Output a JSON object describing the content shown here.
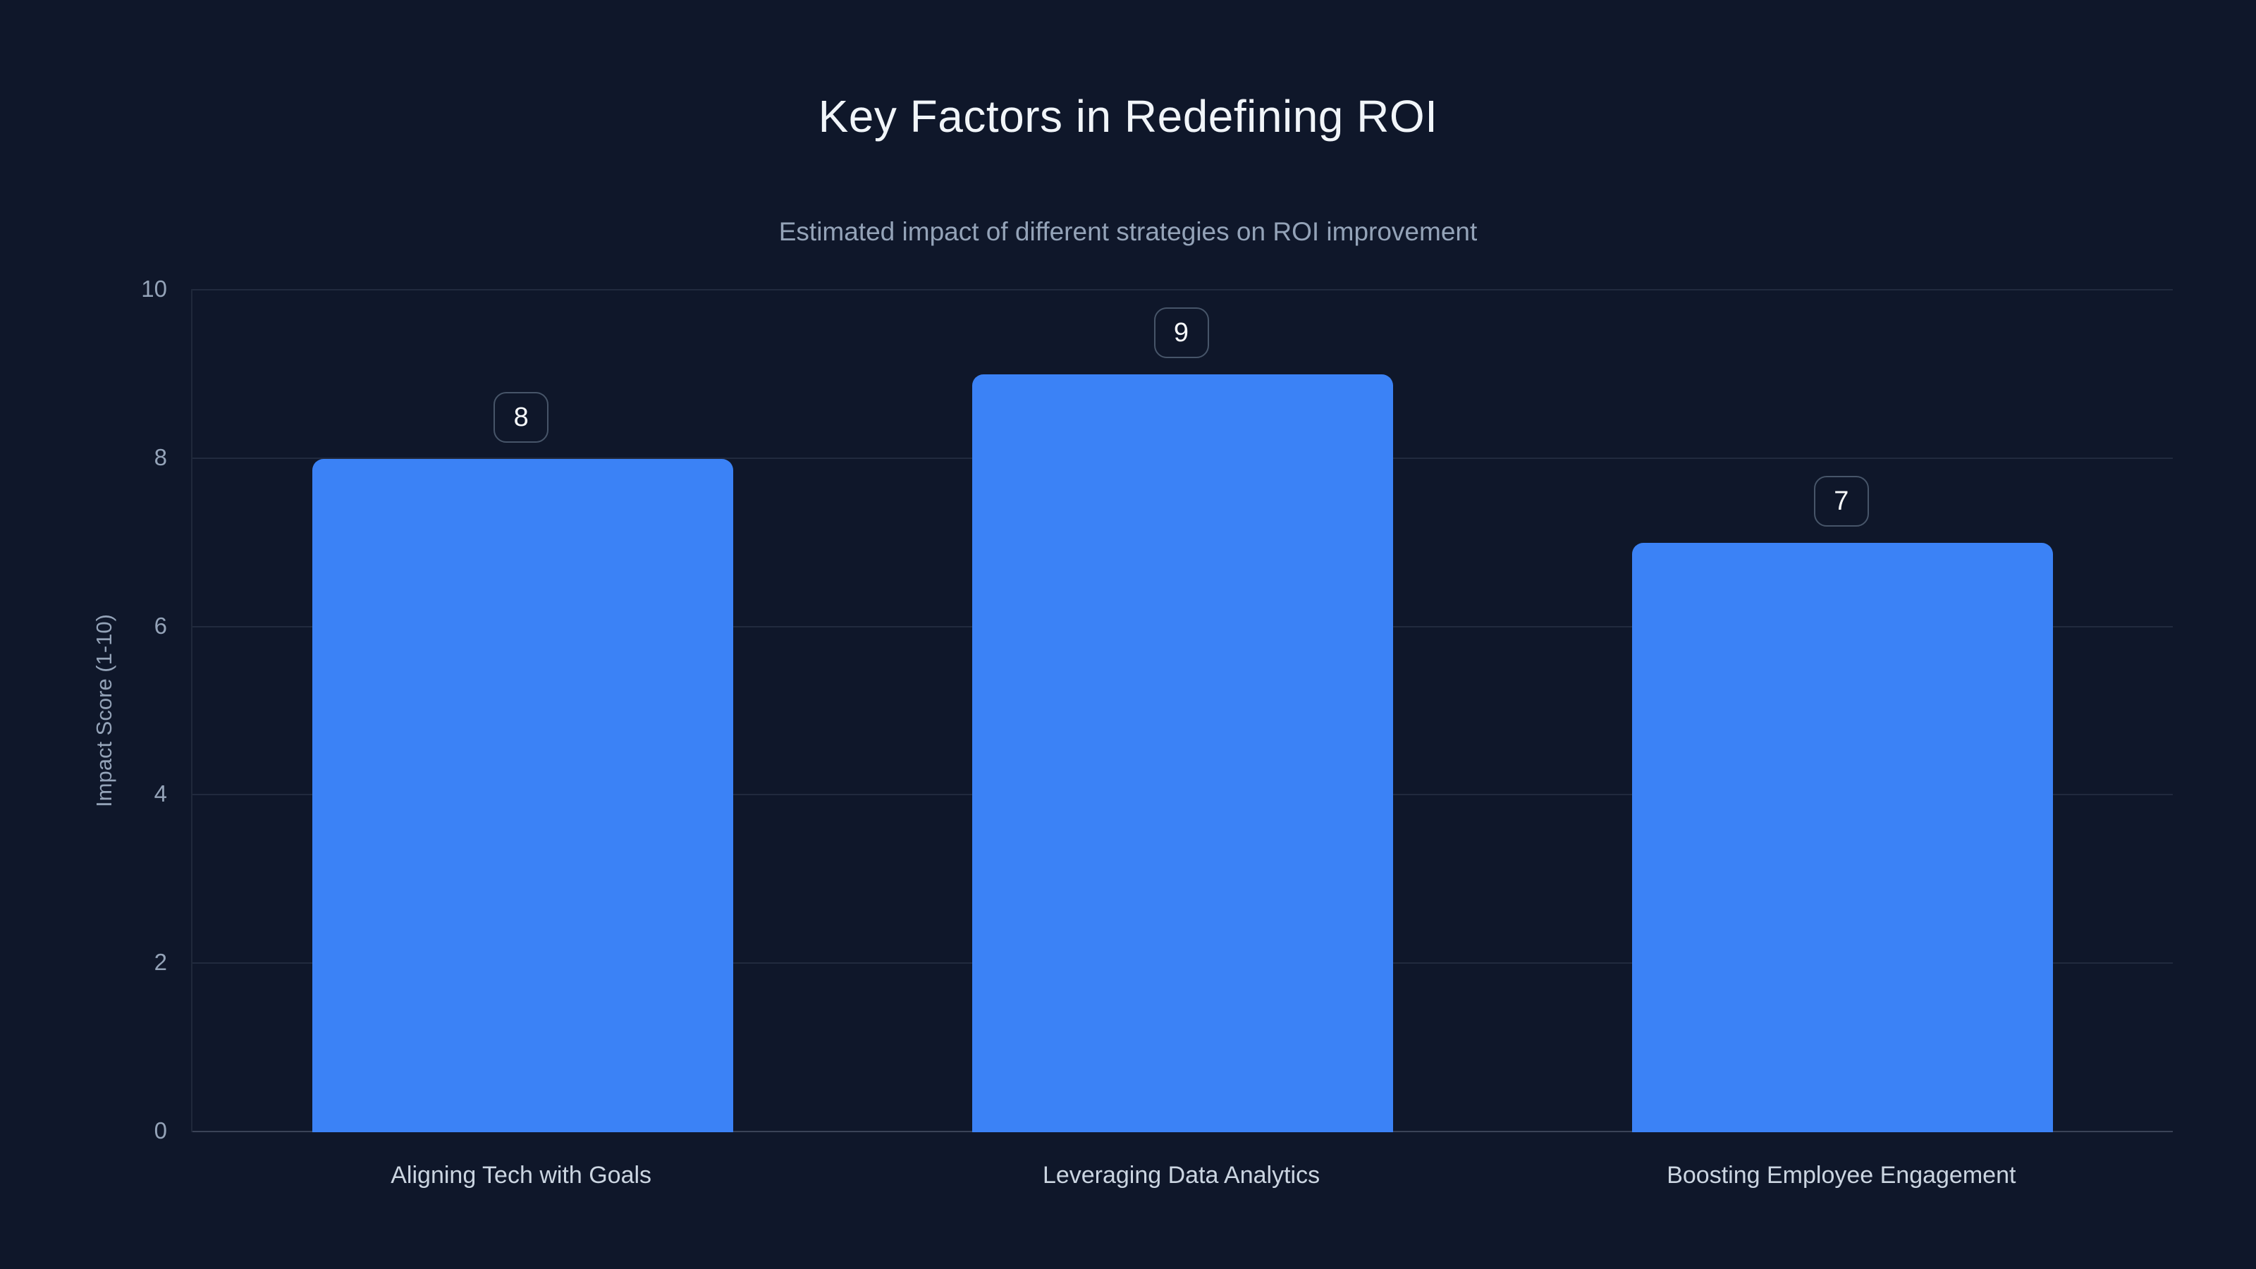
{
  "header": {
    "title": "Key Factors in Redefining ROI",
    "subtitle": "Estimated impact of different strategies on ROI improvement"
  },
  "colors": {
    "background": "#0f172a",
    "bar": "#3b82f6",
    "title_text": "#f1f5f9",
    "subtitle_text": "#94a3b8",
    "tick_text": "#94a3b8",
    "category_text": "#cbd5e1",
    "badge_border": "#475569",
    "badge_text": "#f8fafc",
    "gridline": "rgba(148,163,184,0.14)",
    "axis_line": "rgba(148,163,184,0.32)"
  },
  "chart_data": {
    "type": "bar",
    "categories": [
      "Aligning Tech with Goals",
      "Leveraging Data Analytics",
      "Boosting Employee Engagement"
    ],
    "values": [
      8,
      9,
      7
    ],
    "value_labels": [
      "8",
      "9",
      "7"
    ],
    "title": "Key Factors in Redefining ROI",
    "subtitle": "Estimated impact of different strategies on ROI improvement",
    "xlabel": "",
    "ylabel": "Impact Score (1-10)",
    "ylim": [
      0,
      10
    ],
    "yticks": [
      0,
      2,
      4,
      6,
      8,
      10
    ],
    "grid": true,
    "legend": "none",
    "bar_color": "#3b82f6"
  }
}
